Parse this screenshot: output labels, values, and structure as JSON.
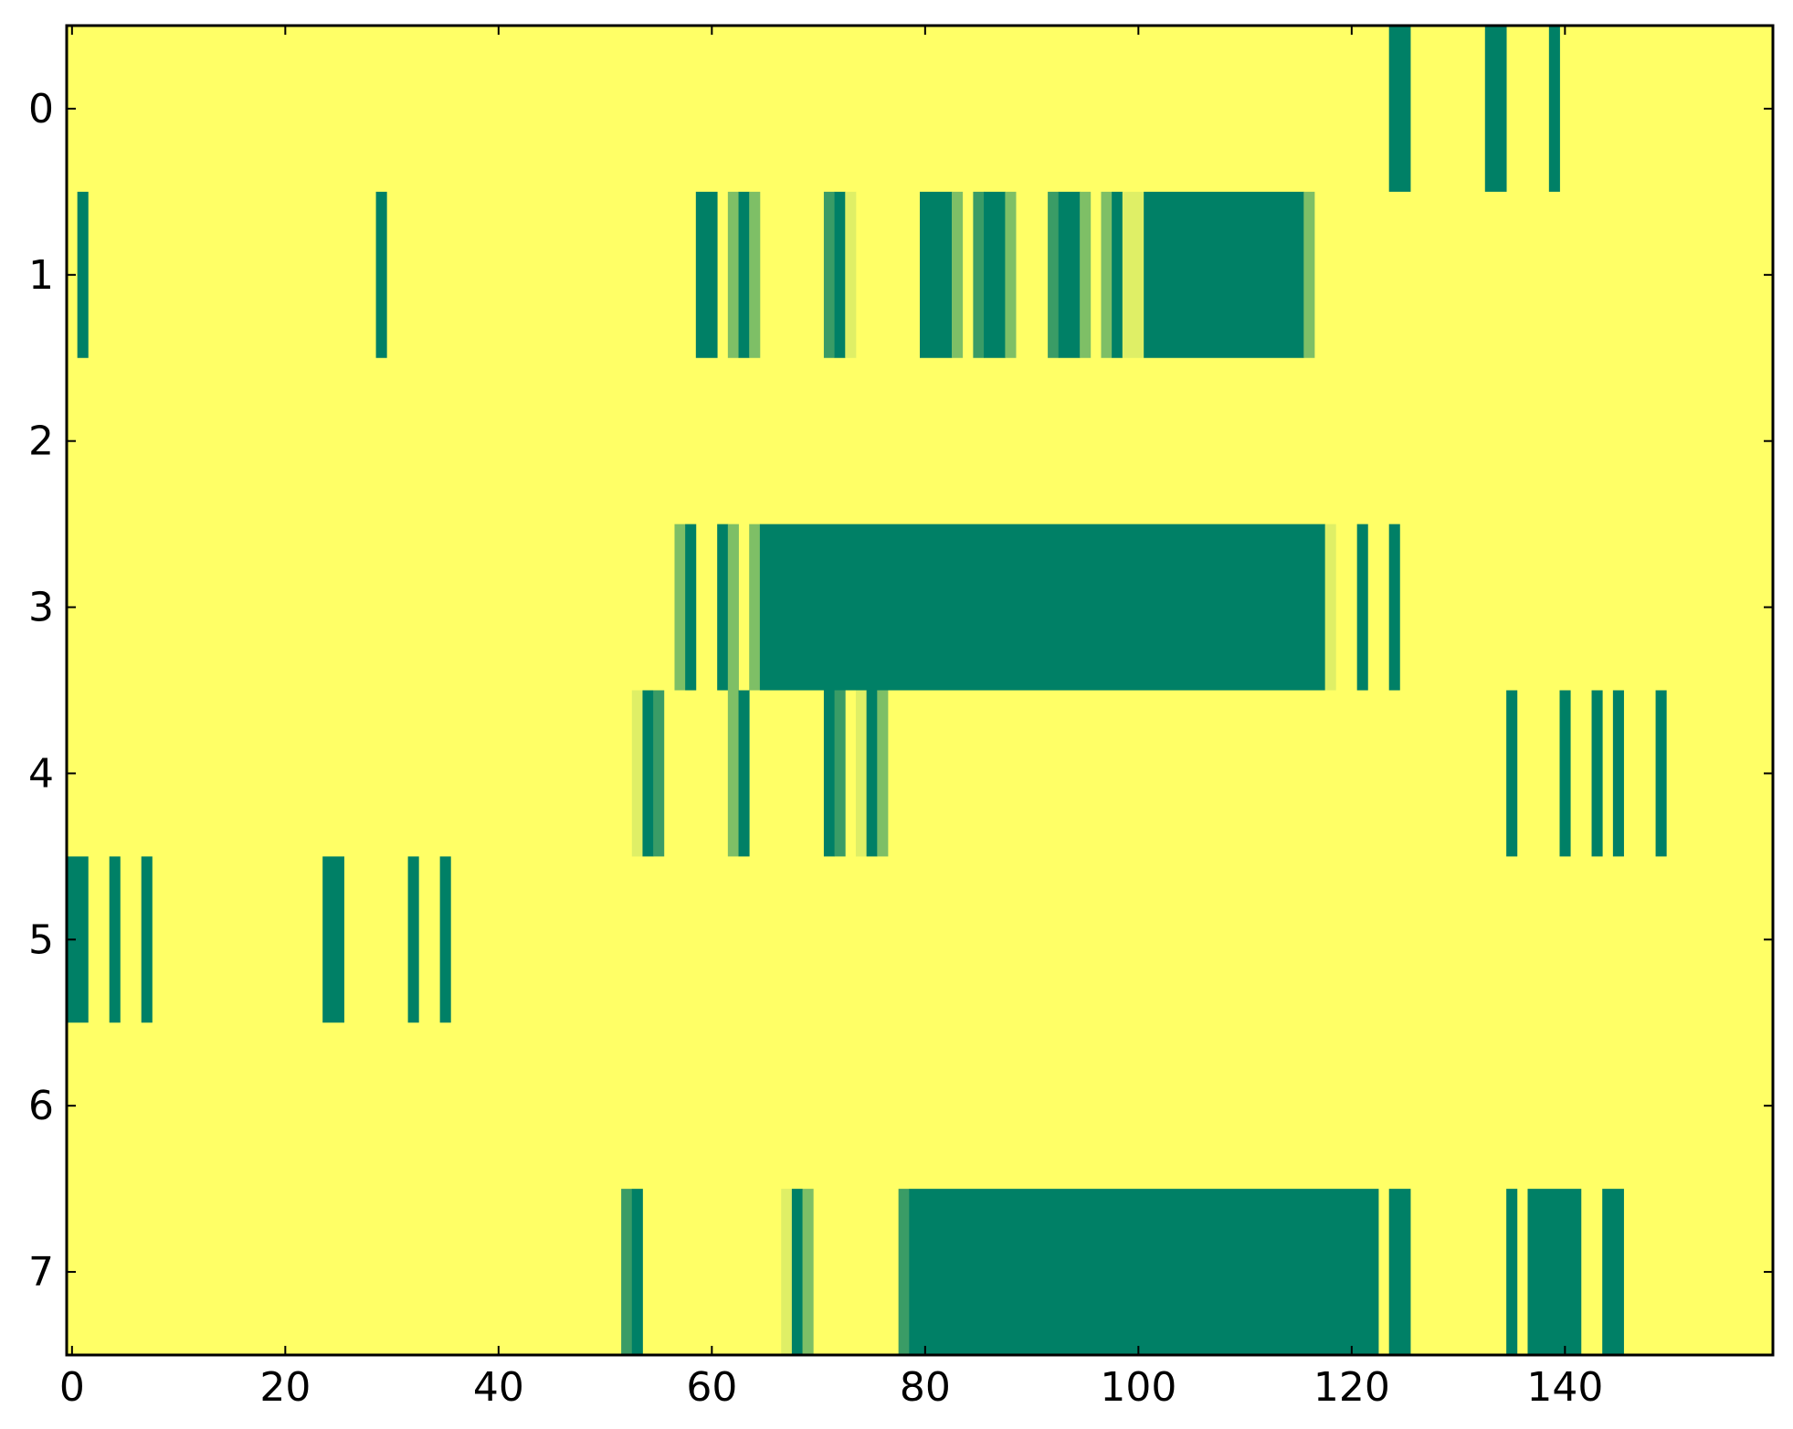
{
  "chart_data": {
    "type": "heatmap",
    "title": "",
    "xlabel": "",
    "ylabel": "",
    "x_range": [
      0,
      159
    ],
    "y_range": [
      0,
      7
    ],
    "xticks": [
      0,
      20,
      40,
      60,
      80,
      100,
      120,
      140
    ],
    "yticks": [
      0,
      1,
      2,
      3,
      4,
      5,
      6,
      7
    ],
    "grid": false,
    "legend": "none",
    "colormap": "summer",
    "colors": {
      "low": "#008066",
      "mid_dark": "#3a9c66",
      "mid": "#7ebf66",
      "mid_light": "#dfef66",
      "high": "#ffff66"
    },
    "background_value": 1.0,
    "rows": [
      {
        "row": 0,
        "segments": [
          {
            "x0": 124,
            "x1": 125,
            "value": 0.0
          },
          {
            "x0": 133,
            "x1": 134,
            "value": 0.0
          },
          {
            "x0": 139,
            "x1": 139,
            "value": 0.0
          }
        ]
      },
      {
        "row": 1,
        "segments": [
          {
            "x0": 1,
            "x1": 1,
            "value": 0.0
          },
          {
            "x0": 29,
            "x1": 29,
            "value": 0.0
          },
          {
            "x0": 59,
            "x1": 60,
            "value": 0.0
          },
          {
            "x0": 62,
            "x1": 62,
            "value": 0.5
          },
          {
            "x0": 63,
            "x1": 63,
            "value": 0.0
          },
          {
            "x0": 64,
            "x1": 64,
            "value": 0.6
          },
          {
            "x0": 71,
            "x1": 71,
            "value": 0.2
          },
          {
            "x0": 72,
            "x1": 72,
            "value": 0.0
          },
          {
            "x0": 73,
            "x1": 73,
            "value": 0.8
          },
          {
            "x0": 80,
            "x1": 82,
            "value": 0.0
          },
          {
            "x0": 83,
            "x1": 83,
            "value": 0.6
          },
          {
            "x0": 85,
            "x1": 85,
            "value": 0.2
          },
          {
            "x0": 86,
            "x1": 87,
            "value": 0.0
          },
          {
            "x0": 88,
            "x1": 88,
            "value": 0.5
          },
          {
            "x0": 92,
            "x1": 92,
            "value": 0.2
          },
          {
            "x0": 93,
            "x1": 94,
            "value": 0.0
          },
          {
            "x0": 95,
            "x1": 95,
            "value": 0.5
          },
          {
            "x0": 97,
            "x1": 97,
            "value": 0.4
          },
          {
            "x0": 98,
            "x1": 98,
            "value": 0.0
          },
          {
            "x0": 99,
            "x1": 100,
            "value": 0.8
          },
          {
            "x0": 101,
            "x1": 115,
            "value": 0.0
          },
          {
            "x0": 116,
            "x1": 116,
            "value": 0.5
          }
        ]
      },
      {
        "row": 2,
        "segments": []
      },
      {
        "row": 3,
        "segments": [
          {
            "x0": 57,
            "x1": 57,
            "value": 0.4
          },
          {
            "x0": 58,
            "x1": 58,
            "value": 0.0
          },
          {
            "x0": 61,
            "x1": 61,
            "value": 0.0
          },
          {
            "x0": 62,
            "x1": 62,
            "value": 0.5
          },
          {
            "x0": 64,
            "x1": 64,
            "value": 0.4
          },
          {
            "x0": 65,
            "x1": 117,
            "value": 0.0
          },
          {
            "x0": 118,
            "x1": 118,
            "value": 0.8
          },
          {
            "x0": 121,
            "x1": 121,
            "value": 0.0
          },
          {
            "x0": 124,
            "x1": 124,
            "value": 0.0
          }
        ]
      },
      {
        "row": 4,
        "segments": [
          {
            "x0": 53,
            "x1": 53,
            "value": 0.8
          },
          {
            "x0": 54,
            "x1": 54,
            "value": 0.0
          },
          {
            "x0": 55,
            "x1": 55,
            "value": 0.2
          },
          {
            "x0": 62,
            "x1": 62,
            "value": 0.5
          },
          {
            "x0": 63,
            "x1": 63,
            "value": 0.0
          },
          {
            "x0": 71,
            "x1": 71,
            "value": 0.0
          },
          {
            "x0": 72,
            "x1": 72,
            "value": 0.2
          },
          {
            "x0": 74,
            "x1": 74,
            "value": 0.8
          },
          {
            "x0": 75,
            "x1": 75,
            "value": 0.0
          },
          {
            "x0": 76,
            "x1": 76,
            "value": 0.5
          },
          {
            "x0": 135,
            "x1": 135,
            "value": 0.0
          },
          {
            "x0": 140,
            "x1": 140,
            "value": 0.0
          },
          {
            "x0": 143,
            "x1": 143,
            "value": 0.0
          },
          {
            "x0": 145,
            "x1": 145,
            "value": 0.0
          },
          {
            "x0": 149,
            "x1": 149,
            "value": 0.0
          }
        ]
      },
      {
        "row": 5,
        "segments": [
          {
            "x0": 0,
            "x1": 1,
            "value": 0.0
          },
          {
            "x0": 4,
            "x1": 4,
            "value": 0.0
          },
          {
            "x0": 7,
            "x1": 7,
            "value": 0.0
          },
          {
            "x0": 24,
            "x1": 25,
            "value": 0.0
          },
          {
            "x0": 32,
            "x1": 32,
            "value": 0.0
          },
          {
            "x0": 35,
            "x1": 35,
            "value": 0.0
          }
        ]
      },
      {
        "row": 6,
        "segments": []
      },
      {
        "row": 7,
        "segments": [
          {
            "x0": 52,
            "x1": 52,
            "value": 0.2
          },
          {
            "x0": 53,
            "x1": 53,
            "value": 0.0
          },
          {
            "x0": 67,
            "x1": 67,
            "value": 0.8
          },
          {
            "x0": 68,
            "x1": 68,
            "value": 0.0
          },
          {
            "x0": 69,
            "x1": 69,
            "value": 0.5
          },
          {
            "x0": 78,
            "x1": 78,
            "value": 0.2
          },
          {
            "x0": 79,
            "x1": 122,
            "value": 0.0
          },
          {
            "x0": 124,
            "x1": 125,
            "value": 0.0
          },
          {
            "x0": 135,
            "x1": 135,
            "value": 0.0
          },
          {
            "x0": 137,
            "x1": 141,
            "value": 0.0
          },
          {
            "x0": 144,
            "x1": 145,
            "value": 0.0
          }
        ]
      }
    ]
  }
}
